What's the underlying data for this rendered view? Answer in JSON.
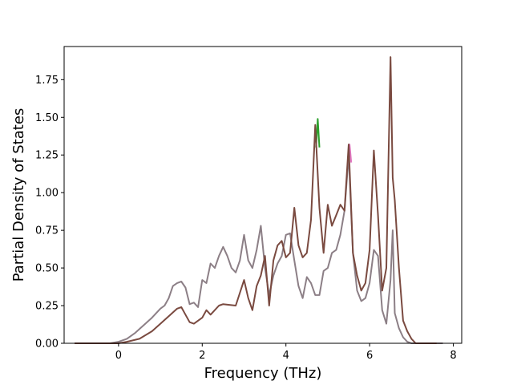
{
  "chart_data": {
    "type": "line",
    "title": "",
    "xlabel": "Frequency (THz)",
    "ylabel": "Partial Density of States",
    "xlim": [
      -1.3,
      8.2
    ],
    "ylim": [
      0.0,
      1.97
    ],
    "xticks": [
      0,
      2,
      4,
      6,
      8
    ],
    "xtick_labels": [
      "0",
      "2",
      "4",
      "6",
      "8"
    ],
    "yticks": [
      0.0,
      0.25,
      0.5,
      0.75,
      1.0,
      1.25,
      1.5,
      1.75
    ],
    "ytick_labels": [
      "0.00",
      "0.25",
      "0.50",
      "0.75",
      "1.00",
      "1.25",
      "1.50",
      "1.75"
    ],
    "grid": false,
    "legend": "none",
    "series": [
      {
        "color": "#8c7f86",
        "x": [
          -1.05,
          -0.6,
          -0.2,
          0.0,
          0.2,
          0.4,
          0.6,
          0.8,
          1.0,
          1.1,
          1.2,
          1.3,
          1.4,
          1.5,
          1.6,
          1.7,
          1.8,
          1.9,
          2.0,
          2.1,
          2.2,
          2.3,
          2.4,
          2.5,
          2.6,
          2.7,
          2.8,
          2.9,
          3.0,
          3.1,
          3.2,
          3.3,
          3.4,
          3.5,
          3.6,
          3.7,
          3.8,
          3.9,
          4.0,
          4.1,
          4.2,
          4.3,
          4.4,
          4.5,
          4.6,
          4.7,
          4.8,
          4.9,
          5.0,
          5.1,
          5.2,
          5.3,
          5.4,
          5.5,
          5.6,
          5.7,
          5.8,
          5.9,
          6.0,
          6.1,
          6.2,
          6.3,
          6.4,
          6.5,
          6.55,
          6.6,
          6.7,
          6.8,
          6.9,
          7.0,
          7.2,
          7.5,
          7.75
        ],
        "y": [
          0.0,
          0.0,
          0.0,
          0.01,
          0.03,
          0.07,
          0.12,
          0.17,
          0.23,
          0.25,
          0.3,
          0.38,
          0.4,
          0.41,
          0.37,
          0.26,
          0.27,
          0.24,
          0.42,
          0.4,
          0.53,
          0.5,
          0.58,
          0.64,
          0.58,
          0.5,
          0.47,
          0.55,
          0.72,
          0.55,
          0.5,
          0.62,
          0.78,
          0.5,
          0.32,
          0.45,
          0.53,
          0.58,
          0.72,
          0.73,
          0.55,
          0.38,
          0.3,
          0.44,
          0.4,
          0.32,
          0.32,
          0.48,
          0.5,
          0.6,
          0.62,
          0.72,
          0.88,
          1.25,
          0.6,
          0.35,
          0.28,
          0.3,
          0.4,
          0.62,
          0.58,
          0.22,
          0.13,
          0.42,
          0.75,
          0.2,
          0.1,
          0.04,
          0.01,
          0.0,
          0.0,
          0.0,
          0.0
        ]
      },
      {
        "color": "#7a4a40",
        "x": [
          -1.05,
          -0.2,
          0.0,
          0.2,
          0.5,
          0.8,
          1.0,
          1.2,
          1.4,
          1.5,
          1.6,
          1.7,
          1.8,
          2.0,
          2.1,
          2.2,
          2.4,
          2.5,
          2.8,
          3.0,
          3.1,
          3.2,
          3.3,
          3.4,
          3.5,
          3.6,
          3.7,
          3.8,
          3.9,
          4.0,
          4.1,
          4.2,
          4.3,
          4.4,
          4.5,
          4.6,
          4.7,
          4.8,
          4.9,
          5.0,
          5.1,
          5.2,
          5.3,
          5.4,
          5.5,
          5.6,
          5.7,
          5.8,
          5.9,
          6.0,
          6.1,
          6.2,
          6.3,
          6.4,
          6.5,
          6.55,
          6.6,
          6.7,
          6.8,
          6.9,
          7.0,
          7.1,
          7.3,
          7.6
        ],
        "y": [
          0.0,
          0.0,
          0.0,
          0.01,
          0.03,
          0.08,
          0.13,
          0.18,
          0.23,
          0.24,
          0.19,
          0.14,
          0.13,
          0.17,
          0.22,
          0.19,
          0.25,
          0.26,
          0.25,
          0.42,
          0.3,
          0.22,
          0.38,
          0.45,
          0.58,
          0.25,
          0.55,
          0.65,
          0.68,
          0.57,
          0.6,
          0.9,
          0.65,
          0.57,
          0.6,
          0.82,
          1.45,
          0.9,
          0.6,
          0.92,
          0.78,
          0.85,
          0.92,
          0.88,
          1.32,
          0.6,
          0.45,
          0.35,
          0.4,
          0.62,
          1.28,
          0.85,
          0.35,
          0.5,
          1.9,
          1.1,
          0.95,
          0.5,
          0.15,
          0.08,
          0.03,
          0.0,
          0.0,
          0.0
        ]
      }
    ],
    "highlights": [
      {
        "color": "#2ca02c",
        "x": [
          4.72,
          4.76,
          4.8
        ],
        "y": [
          1.3,
          1.49,
          1.3
        ]
      },
      {
        "color": "#e377c2",
        "x": [
          5.48,
          5.52,
          5.56
        ],
        "y": [
          1.2,
          1.32,
          1.2
        ]
      }
    ]
  }
}
